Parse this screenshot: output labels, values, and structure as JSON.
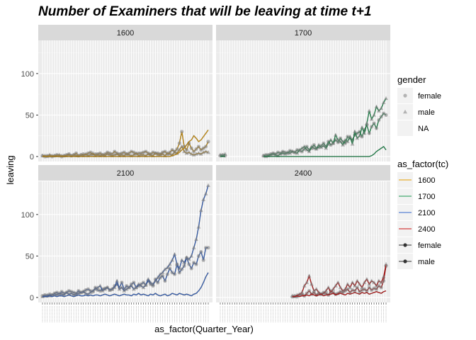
{
  "chart_data": {
    "type": "line",
    "title": "Number of Examiners that will be leaving at time t+1",
    "xlabel": "as_factor(Quarter_Year)",
    "ylabel": "leaving",
    "ylim": [
      -6,
      140
    ],
    "yticks": [
      0,
      50,
      100
    ],
    "n_quarters": 70,
    "facets": [
      "1600",
      "1700",
      "2100",
      "2400"
    ],
    "colors": {
      "1600": "#e69f00",
      "1700": "#1a9850",
      "2100": "#3366cc",
      "2400": "#cc1111"
    },
    "legends": {
      "gender": {
        "title": "gender",
        "items": [
          "female",
          "male",
          "NA"
        ]
      },
      "tc": {
        "title": "as_factor(tc)",
        "items": [
          "1600",
          "1700",
          "2100",
          "2400",
          "female",
          "male"
        ]
      }
    },
    "series": [
      {
        "facet": "1600",
        "gender": "female",
        "values": [
          1,
          0,
          1,
          1,
          0,
          1,
          2,
          1,
          0,
          1,
          2,
          3,
          1,
          2,
          4,
          1,
          2,
          3,
          2,
          4,
          5,
          2,
          3,
          3,
          4,
          2,
          3,
          5,
          4,
          3,
          6,
          4,
          3,
          4,
          5,
          3,
          4,
          6,
          5,
          3,
          4,
          4,
          5,
          6,
          4,
          3,
          5,
          4,
          4,
          3,
          5,
          6,
          3,
          5,
          8,
          6,
          9,
          16,
          30,
          12,
          8,
          16,
          10,
          6,
          9,
          12,
          8,
          10,
          12,
          18
        ]
      },
      {
        "facet": "1600",
        "gender": "male",
        "values": [
          1,
          1,
          0,
          2,
          1,
          1,
          1,
          2,
          1,
          1,
          1,
          2,
          1,
          2,
          1,
          1,
          2,
          1,
          3,
          1,
          2,
          4,
          1,
          2,
          1,
          2,
          1,
          3,
          2,
          1,
          2,
          3,
          1,
          2,
          1,
          3,
          2,
          1,
          2,
          4,
          1,
          2,
          2,
          1,
          3,
          2,
          1,
          4,
          2,
          2,
          3,
          1,
          4,
          3,
          2,
          5,
          4,
          8,
          12,
          6,
          4,
          5,
          3,
          2,
          3,
          4,
          3,
          5,
          6,
          5
        ]
      },
      {
        "facet": "1600",
        "gender": "NA",
        "values": [
          0,
          0,
          0,
          0,
          0,
          0,
          0,
          0,
          0,
          0,
          0,
          0,
          0,
          0,
          0,
          0,
          0,
          0,
          0,
          0,
          0,
          0,
          0,
          0,
          0,
          0,
          0,
          0,
          0,
          0,
          0,
          0,
          0,
          0,
          0,
          0,
          0,
          0,
          0,
          0,
          0,
          0,
          0,
          0,
          0,
          0,
          0,
          0,
          0,
          0,
          0,
          0,
          0,
          0,
          1,
          2,
          3,
          5,
          8,
          10,
          14,
          18,
          20,
          25,
          22,
          18,
          20,
          24,
          28,
          32
        ]
      },
      {
        "facet": "1700",
        "gender": "female",
        "values": [
          1,
          2,
          1,
          null,
          null,
          null,
          null,
          null,
          null,
          null,
          null,
          null,
          null,
          null,
          null,
          null,
          null,
          null,
          1,
          2,
          2,
          3,
          4,
          3,
          5,
          4,
          6,
          5,
          4,
          7,
          6,
          5,
          8,
          7,
          6,
          9,
          12,
          8,
          10,
          14,
          10,
          11,
          13,
          16,
          12,
          18,
          14,
          16,
          20,
          17,
          22,
          18,
          16,
          24,
          22,
          20,
          26,
          28,
          30,
          24,
          32,
          38,
          28,
          36,
          40,
          34,
          44,
          48,
          52,
          50
        ]
      },
      {
        "facet": "1700",
        "gender": "male",
        "values": [
          2,
          1,
          3,
          null,
          null,
          null,
          null,
          null,
          null,
          null,
          null,
          null,
          null,
          null,
          null,
          null,
          null,
          null,
          1,
          0,
          1,
          2,
          3,
          2,
          1,
          3,
          4,
          3,
          5,
          4,
          6,
          5,
          4,
          8,
          10,
          12,
          8,
          6,
          12,
          10,
          9,
          14,
          11,
          13,
          10,
          15,
          20,
          16,
          26,
          20,
          18,
          14,
          20,
          18,
          24,
          15,
          30,
          22,
          25,
          35,
          28,
          40,
          55,
          45,
          50,
          60,
          55,
          58,
          65,
          70
        ]
      },
      {
        "facet": "1700",
        "gender": "NA",
        "values": [
          0,
          0,
          0,
          null,
          null,
          null,
          null,
          null,
          null,
          null,
          null,
          null,
          null,
          null,
          null,
          null,
          null,
          null,
          0,
          0,
          0,
          0,
          0,
          0,
          0,
          0,
          0,
          0,
          0,
          0,
          0,
          0,
          0,
          0,
          0,
          0,
          0,
          0,
          0,
          0,
          0,
          0,
          0,
          0,
          0,
          0,
          0,
          0,
          0,
          0,
          0,
          0,
          0,
          0,
          0,
          0,
          0,
          0,
          0,
          0,
          0,
          0,
          0,
          1,
          3,
          6,
          8,
          10,
          12,
          8
        ]
      },
      {
        "facet": "2100",
        "gender": "female",
        "values": [
          2,
          3,
          2,
          4,
          3,
          5,
          6,
          4,
          7,
          5,
          6,
          8,
          7,
          6,
          5,
          8,
          6,
          7,
          9,
          10,
          8,
          7,
          12,
          9,
          8,
          10,
          11,
          12,
          9,
          10,
          14,
          16,
          12,
          18,
          10,
          14,
          12,
          16,
          18,
          12,
          14,
          16,
          18,
          15,
          20,
          16,
          14,
          22,
          18,
          24,
          26,
          20,
          28,
          35,
          30,
          28,
          40,
          30,
          34,
          38,
          48,
          40,
          35,
          42,
          40,
          50,
          55,
          45,
          60,
          60
        ]
      },
      {
        "facet": "2100",
        "gender": "male",
        "values": [
          1,
          2,
          3,
          2,
          3,
          4,
          3,
          5,
          4,
          3,
          6,
          4,
          5,
          3,
          4,
          5,
          6,
          7,
          5,
          4,
          6,
          8,
          10,
          12,
          14,
          8,
          10,
          12,
          9,
          10,
          12,
          20,
          10,
          12,
          8,
          10,
          12,
          14,
          10,
          12,
          16,
          14,
          12,
          15,
          22,
          18,
          16,
          20,
          24,
          28,
          30,
          34,
          36,
          40,
          45,
          52,
          40,
          35,
          45,
          42,
          48,
          46,
          50,
          60,
          70,
          85,
          105,
          118,
          125,
          135
        ]
      },
      {
        "facet": "2100",
        "gender": "NA",
        "values": [
          1,
          1,
          1,
          2,
          1,
          2,
          1,
          2,
          2,
          1,
          2,
          3,
          2,
          1,
          2,
          3,
          2,
          2,
          3,
          2,
          3,
          2,
          3,
          3,
          2,
          3,
          4,
          3,
          2,
          3,
          4,
          3,
          2,
          3,
          4,
          3,
          3,
          2,
          4,
          3,
          5,
          3,
          4,
          3,
          2,
          4,
          3,
          5,
          3,
          2,
          3,
          4,
          2,
          3,
          5,
          4,
          3,
          5,
          4,
          3,
          4,
          3,
          2,
          4,
          5,
          8,
          12,
          18,
          25,
          30
        ]
      },
      {
        "facet": "2400",
        "gender": "female",
        "values": [
          null,
          null,
          null,
          null,
          null,
          null,
          null,
          null,
          null,
          null,
          null,
          null,
          null,
          null,
          null,
          null,
          null,
          null,
          null,
          null,
          null,
          null,
          null,
          null,
          null,
          null,
          null,
          null,
          null,
          null,
          1,
          2,
          1,
          3,
          4,
          2,
          5,
          8,
          4,
          6,
          3,
          5,
          4,
          6,
          5,
          3,
          8,
          6,
          4,
          5,
          7,
          6,
          8,
          10,
          6,
          9,
          8,
          12,
          7,
          9,
          10,
          8,
          12,
          9,
          11,
          10,
          14,
          12,
          20,
          38
        ]
      },
      {
        "facet": "2400",
        "gender": "male",
        "values": [
          null,
          null,
          null,
          null,
          null,
          null,
          null,
          null,
          null,
          null,
          null,
          null,
          null,
          null,
          null,
          null,
          null,
          null,
          null,
          null,
          null,
          null,
          null,
          null,
          null,
          null,
          null,
          null,
          null,
          null,
          2,
          1,
          3,
          4,
          6,
          14,
          18,
          26,
          16,
          8,
          10,
          6,
          4,
          5,
          8,
          12,
          6,
          10,
          14,
          18,
          12,
          8,
          10,
          16,
          12,
          18,
          14,
          20,
          16,
          12,
          18,
          22,
          16,
          20,
          18,
          14,
          20,
          18,
          25,
          40
        ]
      },
      {
        "facet": "2400",
        "gender": "NA",
        "values": [
          null,
          null,
          null,
          null,
          null,
          null,
          null,
          null,
          null,
          null,
          null,
          null,
          null,
          null,
          null,
          null,
          null,
          null,
          null,
          null,
          null,
          null,
          null,
          null,
          null,
          null,
          null,
          null,
          null,
          null,
          1,
          1,
          2,
          1,
          2,
          2,
          3,
          2,
          4,
          3,
          2,
          3,
          4,
          2,
          3,
          3,
          4,
          5,
          3,
          4,
          5,
          4,
          3,
          5,
          4,
          5,
          6,
          5,
          4,
          6,
          5,
          6,
          4,
          5,
          6,
          7,
          6,
          5,
          7,
          8
        ]
      }
    ]
  }
}
